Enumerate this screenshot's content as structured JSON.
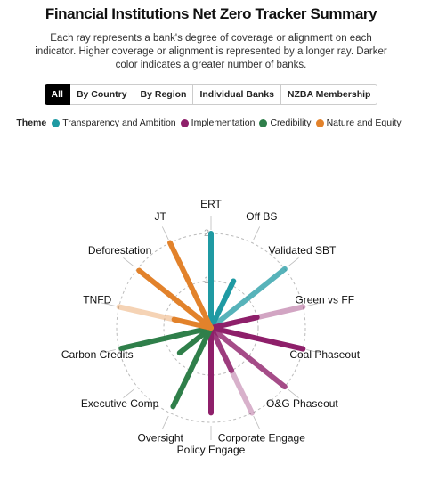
{
  "header": {
    "title": "Financial Institutions Net Zero Tracker Summary",
    "subtitle": "Each ray represents a bank's degree of coverage or alignment on each indicator. Higher coverage or alignment is represented by a longer ray. Darker color indicates a greater number of banks."
  },
  "tabs": {
    "items": [
      "All",
      "By Country",
      "By Region",
      "Individual Banks",
      "NZBA Membership"
    ],
    "active": 0
  },
  "legend": {
    "title": "Theme",
    "themes": [
      {
        "name": "Transparency and Ambition",
        "color": "#1f9aa3"
      },
      {
        "name": "Implementation",
        "color": "#8e1f6a"
      },
      {
        "name": "Credibility",
        "color": "#2f7f4a"
      },
      {
        "name": "Nature and Equity",
        "color": "#e2822b"
      }
    ]
  },
  "chart_data": {
    "type": "radial-rays",
    "rlim": [
      0,
      2
    ],
    "rticks": [
      1,
      2
    ],
    "indicators": [
      {
        "label": "ERT",
        "theme": 0,
        "rays": [
          {
            "value": 2.0,
            "opacity": 1
          }
        ]
      },
      {
        "label": "Off BS",
        "theme": 0,
        "rays": [
          {
            "value": 1.1,
            "opacity": 1
          }
        ]
      },
      {
        "label": "Validated SBT",
        "theme": 0,
        "rays": [
          {
            "value": 2.0,
            "opacity": 0.75
          }
        ]
      },
      {
        "label": "Green vs FF",
        "theme": 1,
        "rays": [
          {
            "value": 2.0,
            "opacity": 0.4
          },
          {
            "value": 1.0,
            "opacity": 1
          }
        ]
      },
      {
        "label": "Coal Phaseout",
        "theme": 1,
        "rays": [
          {
            "value": 2.0,
            "opacity": 1
          }
        ]
      },
      {
        "label": "O&G Phaseout",
        "theme": 1,
        "rays": [
          {
            "value": 2.0,
            "opacity": 0.8
          }
        ]
      },
      {
        "label": "Corporate Engage",
        "theme": 1,
        "rays": [
          {
            "value": 2.0,
            "opacity": 0.35
          },
          {
            "value": 1.0,
            "opacity": 0.8
          }
        ]
      },
      {
        "label": "Policy Engage",
        "theme": 1,
        "rays": [
          {
            "value": 1.8,
            "opacity": 1
          }
        ]
      },
      {
        "label": "Oversight",
        "theme": 2,
        "rays": [
          {
            "value": 1.85,
            "opacity": 1
          }
        ]
      },
      {
        "label": "Executive Comp",
        "theme": 2,
        "rays": [
          {
            "value": 0.85,
            "opacity": 1
          }
        ]
      },
      {
        "label": "Carbon Credits",
        "theme": 2,
        "rays": [
          {
            "value": 1.95,
            "opacity": 1
          }
        ]
      },
      {
        "label": "TNFD",
        "theme": 3,
        "rays": [
          {
            "value": 2.0,
            "opacity": 0.35
          },
          {
            "value": 0.8,
            "opacity": 1
          }
        ]
      },
      {
        "label": "Deforestation",
        "theme": 3,
        "rays": [
          {
            "value": 1.95,
            "opacity": 1
          }
        ]
      },
      {
        "label": "JT",
        "theme": 3,
        "rays": [
          {
            "value": 2.0,
            "opacity": 1
          }
        ]
      }
    ]
  }
}
